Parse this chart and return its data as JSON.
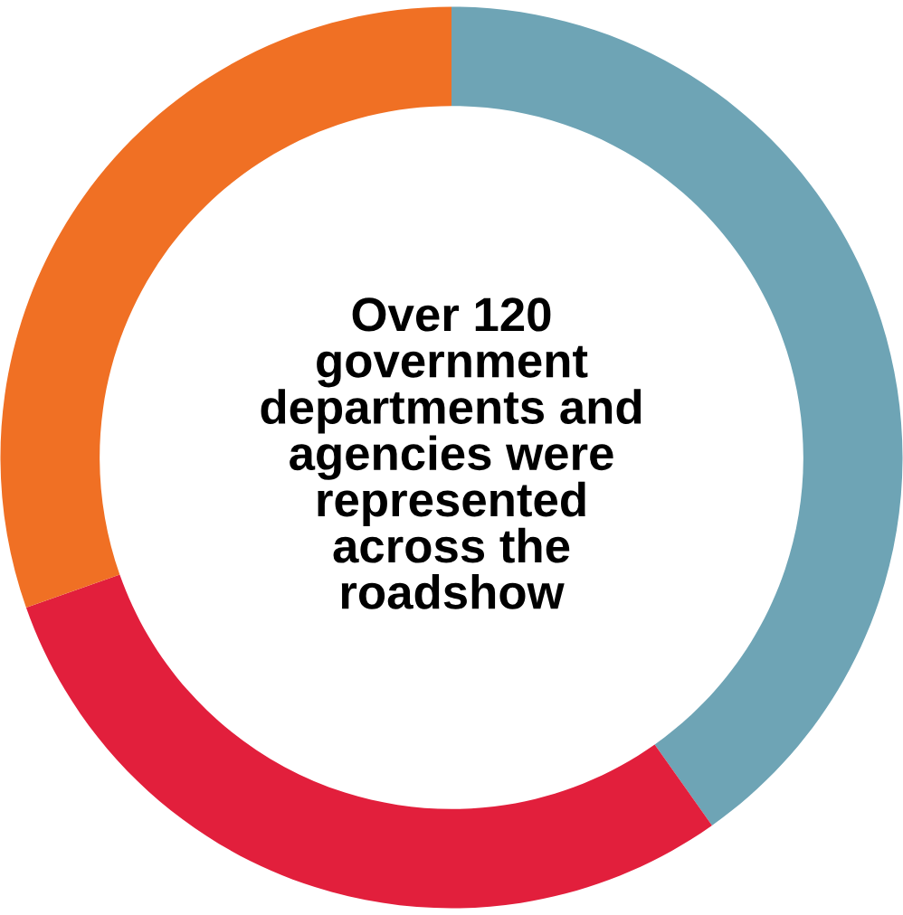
{
  "chart_data": {
    "type": "donut",
    "title": "Over 120\ngovernment\ndepartments and\nagencies were\nrepresented\nacross the\nroadshow",
    "categories": [
      null,
      null,
      null
    ],
    "values": [
      40.2,
      29.4,
      30.4
    ],
    "colors": [
      "#6ea4b5",
      "#e21f3c",
      "#f07024"
    ],
    "legend": false
  }
}
